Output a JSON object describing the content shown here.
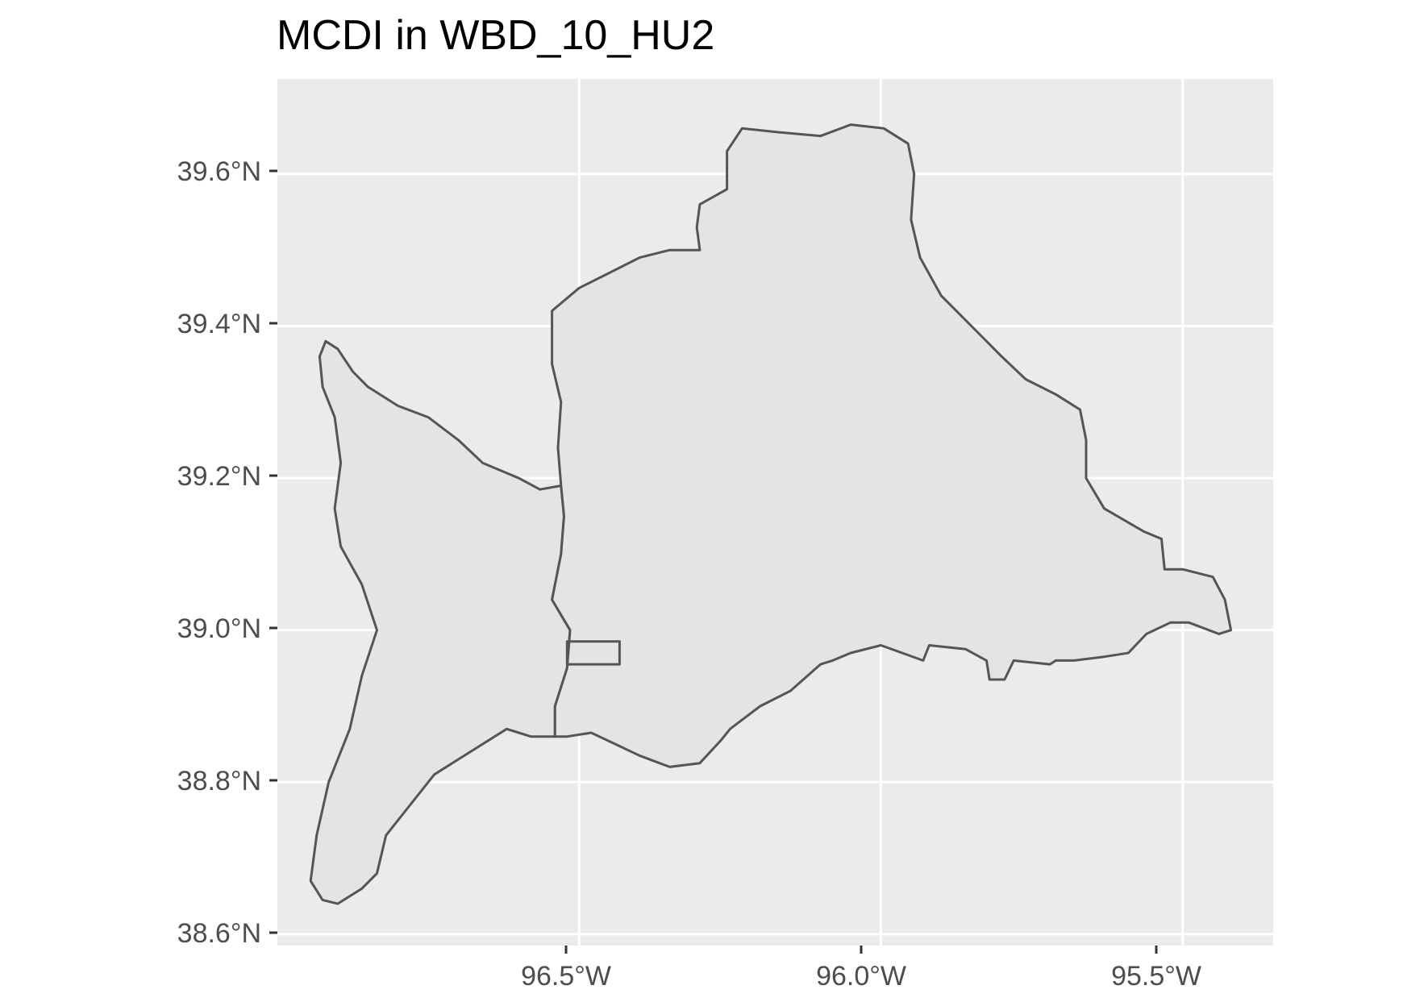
{
  "title": "MCDI in WBD_10_HU2",
  "colors": {
    "panel_background": "#ebebeb",
    "grid": "#ffffff",
    "polygon_fill": "#e4e4e4",
    "polygon_stroke": "#555555",
    "axis_text": "#4d4d4d"
  },
  "axes": {
    "x_ticks": [
      "96.5°W",
      "96.0°W",
      "95.5°W"
    ],
    "y_ticks": [
      "39.6°N",
      "39.4°N",
      "39.2°N",
      "39.0°N",
      "38.8°N",
      "38.6°N"
    ]
  },
  "chart_data": {
    "type": "map",
    "title": "MCDI in WBD_10_HU2",
    "xlabel": "",
    "ylabel": "",
    "xlim": [
      -97.0,
      -95.35
    ],
    "ylim": [
      38.585,
      39.725
    ],
    "x_tick_values": [
      -96.5,
      -96.0,
      -95.5
    ],
    "y_tick_values": [
      39.6,
      39.4,
      39.2,
      39.0,
      38.8,
      38.6
    ],
    "grid": true,
    "features": [
      {
        "kind": "watershed-west",
        "coords": [
          [
            -96.92,
            39.38
          ],
          [
            -96.9,
            39.37
          ],
          [
            -96.875,
            39.34
          ],
          [
            -96.85,
            39.32
          ],
          [
            -96.8,
            39.295
          ],
          [
            -96.75,
            39.28
          ],
          [
            -96.7,
            39.25
          ],
          [
            -96.66,
            39.22
          ],
          [
            -96.6,
            39.2
          ],
          [
            -96.565,
            39.185
          ],
          [
            -96.53,
            39.19
          ],
          [
            -96.525,
            39.15
          ],
          [
            -96.53,
            39.1
          ],
          [
            -96.545,
            39.04
          ],
          [
            -96.515,
            39.0
          ],
          [
            -96.52,
            38.95
          ],
          [
            -96.54,
            38.9
          ],
          [
            -96.54,
            38.86
          ],
          [
            -96.58,
            38.86
          ],
          [
            -96.62,
            38.87
          ],
          [
            -96.68,
            38.84
          ],
          [
            -96.74,
            38.81
          ],
          [
            -96.78,
            38.77
          ],
          [
            -96.82,
            38.73
          ],
          [
            -96.835,
            38.68
          ],
          [
            -96.86,
            38.66
          ],
          [
            -96.9,
            38.64
          ],
          [
            -96.925,
            38.645
          ],
          [
            -96.945,
            38.67
          ],
          [
            -96.935,
            38.73
          ],
          [
            -96.915,
            38.8
          ],
          [
            -96.88,
            38.87
          ],
          [
            -96.86,
            38.94
          ],
          [
            -96.835,
            39.0
          ],
          [
            -96.86,
            39.06
          ],
          [
            -96.895,
            39.11
          ],
          [
            -96.905,
            39.16
          ],
          [
            -96.895,
            39.22
          ],
          [
            -96.905,
            39.28
          ],
          [
            -96.925,
            39.32
          ],
          [
            -96.93,
            39.36
          ]
        ]
      },
      {
        "kind": "watershed-east",
        "coords": [
          [
            -96.53,
            39.19
          ],
          [
            -96.535,
            39.24
          ],
          [
            -96.53,
            39.3
          ],
          [
            -96.545,
            39.35
          ],
          [
            -96.545,
            39.42
          ],
          [
            -96.5,
            39.45
          ],
          [
            -96.45,
            39.47
          ],
          [
            -96.4,
            39.49
          ],
          [
            -96.35,
            39.5
          ],
          [
            -96.3,
            39.5
          ],
          [
            -96.305,
            39.53
          ],
          [
            -96.3,
            39.56
          ],
          [
            -96.255,
            39.58
          ],
          [
            -96.255,
            39.63
          ],
          [
            -96.23,
            39.66
          ],
          [
            -96.17,
            39.655
          ],
          [
            -96.1,
            39.65
          ],
          [
            -96.05,
            39.665
          ],
          [
            -95.995,
            39.66
          ],
          [
            -95.955,
            39.64
          ],
          [
            -95.945,
            39.6
          ],
          [
            -95.95,
            39.54
          ],
          [
            -95.935,
            39.49
          ],
          [
            -95.9,
            39.44
          ],
          [
            -95.85,
            39.4
          ],
          [
            -95.8,
            39.36
          ],
          [
            -95.76,
            39.33
          ],
          [
            -95.71,
            39.31
          ],
          [
            -95.67,
            39.29
          ],
          [
            -95.66,
            39.25
          ],
          [
            -95.66,
            39.2
          ],
          [
            -95.63,
            39.16
          ],
          [
            -95.565,
            39.13
          ],
          [
            -95.535,
            39.12
          ],
          [
            -95.53,
            39.08
          ],
          [
            -95.5,
            39.08
          ],
          [
            -95.45,
            39.07
          ],
          [
            -95.43,
            39.04
          ],
          [
            -95.42,
            39.0
          ],
          [
            -95.44,
            38.995
          ],
          [
            -95.49,
            39.01
          ],
          [
            -95.52,
            39.01
          ],
          [
            -95.56,
            38.995
          ],
          [
            -95.59,
            38.97
          ],
          [
            -95.63,
            38.965
          ],
          [
            -95.68,
            38.96
          ],
          [
            -95.71,
            38.96
          ],
          [
            -95.72,
            38.955
          ],
          [
            -95.78,
            38.96
          ],
          [
            -95.795,
            38.935
          ],
          [
            -95.82,
            38.935
          ],
          [
            -95.825,
            38.96
          ],
          [
            -95.86,
            38.975
          ],
          [
            -95.92,
            38.98
          ],
          [
            -95.93,
            38.96
          ],
          [
            -96.0,
            38.98
          ],
          [
            -96.05,
            38.97
          ],
          [
            -96.08,
            38.96
          ],
          [
            -96.1,
            38.955
          ],
          [
            -96.15,
            38.92
          ],
          [
            -96.2,
            38.9
          ],
          [
            -96.25,
            38.87
          ],
          [
            -96.265,
            38.855
          ],
          [
            -96.3,
            38.825
          ],
          [
            -96.35,
            38.82
          ],
          [
            -96.4,
            38.835
          ],
          [
            -96.44,
            38.85
          ],
          [
            -96.48,
            38.865
          ],
          [
            -96.52,
            38.86
          ],
          [
            -96.54,
            38.86
          ],
          [
            -96.54,
            38.9
          ],
          [
            -96.52,
            38.95
          ],
          [
            -96.515,
            39.0
          ],
          [
            -96.545,
            39.04
          ],
          [
            -96.53,
            39.1
          ],
          [
            -96.525,
            39.15
          ]
        ]
      },
      {
        "kind": "study-area-box",
        "coords": [
          [
            -96.52,
            38.955
          ],
          [
            -96.433,
            38.955
          ],
          [
            -96.433,
            38.985
          ],
          [
            -96.52,
            38.985
          ]
        ]
      }
    ]
  }
}
